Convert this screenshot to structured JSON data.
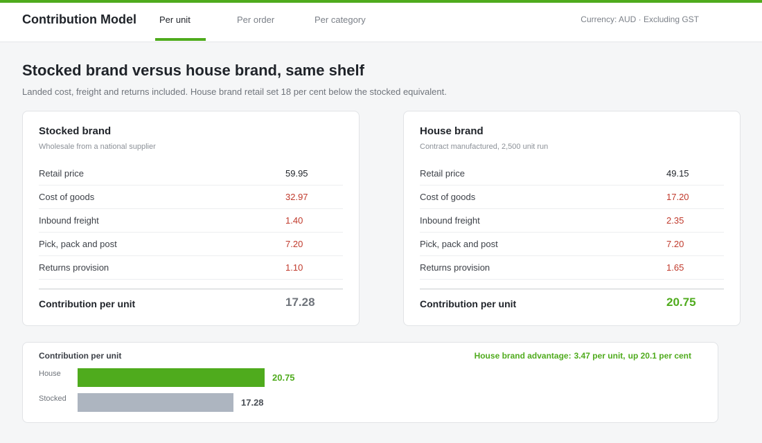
{
  "header": {
    "app_title": "Contribution Model",
    "tabs": [
      {
        "label": "Per unit",
        "active": true
      },
      {
        "label": "Per order",
        "active": false
      },
      {
        "label": "Per category",
        "active": false
      }
    ],
    "currency_note": "Currency: AUD  ·  Excluding GST"
  },
  "page": {
    "title": "Stocked brand versus house brand, same shelf",
    "subtitle": "Landed cost, freight and returns included. House brand retail set 18 per cent below the stocked equivalent."
  },
  "cards": {
    "stocked": {
      "title": "Stocked brand",
      "subtitle": "Wholesale from a national supplier",
      "rows": [
        {
          "label": "Retail price",
          "value": "59.95",
          "type": "revenue"
        },
        {
          "label": "Cost of goods",
          "value": "32.97",
          "type": "cost"
        },
        {
          "label": "Inbound freight",
          "value": "1.40",
          "type": "cost"
        },
        {
          "label": "Pick, pack and post",
          "value": "7.20",
          "type": "cost"
        },
        {
          "label": "Returns provision",
          "value": "1.10",
          "type": "cost"
        }
      ],
      "total_label": "Contribution per unit",
      "total_value": "17.28"
    },
    "house": {
      "title": "House brand",
      "subtitle": "Contract manufactured, 2,500 unit run",
      "rows": [
        {
          "label": "Retail price",
          "value": "49.15",
          "type": "revenue"
        },
        {
          "label": "Cost of goods",
          "value": "17.20",
          "type": "cost"
        },
        {
          "label": "Inbound freight",
          "value": "2.35",
          "type": "cost"
        },
        {
          "label": "Pick, pack and post",
          "value": "7.20",
          "type": "cost"
        },
        {
          "label": "Returns provision",
          "value": "1.65",
          "type": "cost"
        }
      ],
      "total_label": "Contribution per unit",
      "total_value": "20.75"
    }
  },
  "comparison": {
    "title": "Contribution per unit",
    "advantage_label": "House brand advantage:",
    "advantage_amount": "3.47 per unit,",
    "advantage_percent": "up 20.1 per cent"
  },
  "chart_data": {
    "type": "bar",
    "orientation": "horizontal",
    "title": "Contribution per unit",
    "categories": [
      "House",
      "Stocked"
    ],
    "values": [
      20.75,
      17.28
    ],
    "value_labels": [
      "20.75",
      "17.28"
    ],
    "colors": [
      "#4fab1d",
      "#adb5c0"
    ]
  },
  "colors": {
    "accent": "#4fab1d",
    "cost": "#c0392b",
    "muted_bar": "#adb5c0"
  }
}
